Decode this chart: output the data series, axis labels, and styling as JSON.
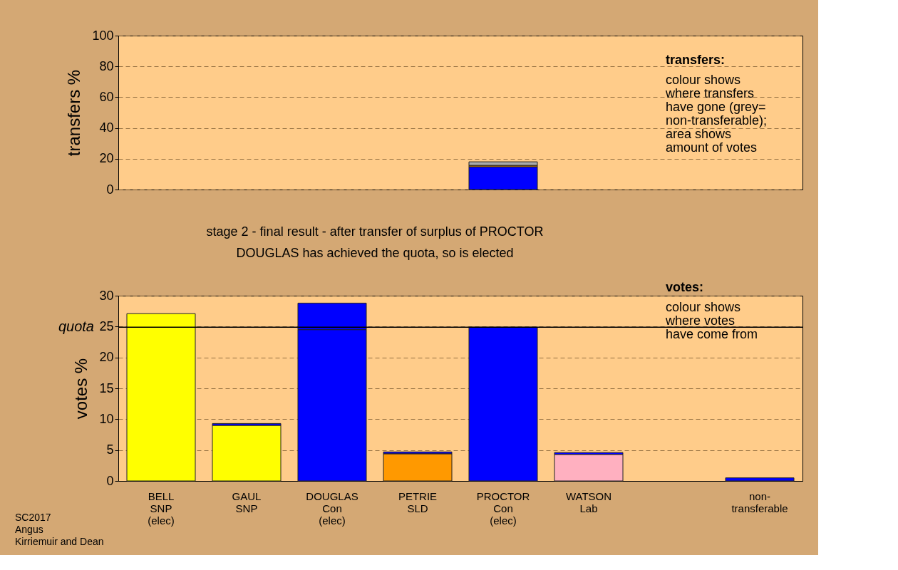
{
  "chart_data": [
    {
      "type": "bar",
      "stacked": true,
      "ylabel": "transfers %",
      "categories": [
        null,
        null,
        null,
        null,
        null,
        null,
        null,
        null
      ],
      "series": [
        {
          "colors": [
            "#0000ff",
            "#0000ff",
            "#0000ff",
            "#0000ff",
            "#0000ff",
            "#0000ff",
            "#0000ff",
            "#0000ff"
          ],
          "values": [
            null,
            null,
            null,
            null,
            14.8,
            null,
            null,
            null
          ]
        },
        {
          "colors": [
            "#ff9900",
            "#ff9900",
            "#ff9900",
            "#ff9900",
            "#ff9900",
            "#ff9900",
            "#ff9900",
            "#ff9900"
          ],
          "values": [
            null,
            null,
            null,
            null,
            0.9,
            null,
            null,
            null
          ]
        },
        {
          "colors": [
            "#aaaaaa",
            "#aaaaaa",
            "#aaaaaa",
            "#aaaaaa",
            "#aaaaaa",
            "#aaaaaa",
            "#aaaaaa",
            "#aaaaaa"
          ],
          "values": [
            null,
            null,
            null,
            null,
            2.3,
            null,
            null,
            null
          ]
        }
      ],
      "ylim": [
        0,
        100
      ],
      "yticks": [
        0,
        20,
        40,
        60,
        80,
        100
      ],
      "grid": "y",
      "tick_labels": "y",
      "annotations": [
        "transfers:\ncolour shows\nwhere transfers\nhave gone (grey=\nnon-transferable);\narea shows\namount of votes"
      ]
    },
    {
      "type": "bar",
      "stacked": true,
      "title": "stage 2 - final result - after transfer of surplus of PROCTOR",
      "subtitle": "DOUGLAS has achieved the quota, so is elected",
      "ylabel": "votes %",
      "categories": [
        "BELL\nSNP\n(elec)",
        "GAUL\nSNP",
        "DOUGLAS\nCon\n(elec)",
        "PETRIE\nSLD",
        "PROCTOR\nCon\n(elec)",
        "WATSON\nLab",
        null,
        "non-\ntransferable"
      ],
      "series": [
        {
          "colors": [
            "#ffff00",
            "#ffff00",
            "#0000ff",
            "#ff9900",
            "#0000ff",
            "#ffb0c0",
            null,
            "#0000ff"
          ],
          "values": [
            27.1,
            9.0,
            24.5,
            4.4,
            24.9,
            4.3,
            null,
            0.5
          ]
        },
        {
          "colors": [
            "#0000ff",
            "#0000ff",
            "#0000ff",
            "#0000ff",
            "#0000ff",
            "#0000ff",
            null,
            "#0000ff"
          ],
          "values": [
            null,
            0.3,
            4.3,
            0.3,
            null,
            0.3,
            null,
            null
          ]
        }
      ],
      "ylim": [
        0,
        30
      ],
      "yticks": [
        0,
        5,
        10,
        15,
        20,
        25,
        30
      ],
      "grid": "y",
      "ref_lines": [
        {
          "axis": "y",
          "value": 24.9,
          "label": "quota",
          "color": "#000000"
        }
      ],
      "annotations": [
        "votes:\ncolour shows\nwhere votes\nhave come from",
        "SC2017\nAngus\nKirriemuir and Dean"
      ]
    }
  ]
}
